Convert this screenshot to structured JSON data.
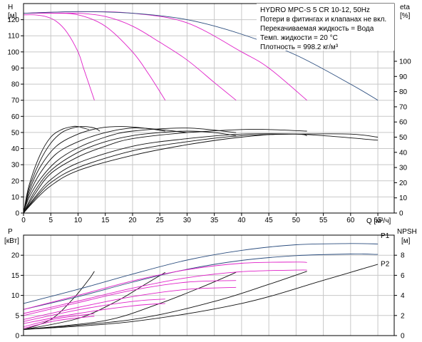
{
  "colors": {
    "pump_curve": "#2b4d7e",
    "system_curve": "#e020c8",
    "efficiency_curve": "#111111",
    "grid": "#c8c8c8"
  },
  "chart_data": [
    {
      "type": "line",
      "name": "upper",
      "title": "",
      "left_axis_label": [
        "H",
        "[м]"
      ],
      "right_axis_label": [
        "eta",
        "[%]"
      ],
      "x_label": "Q [м³/ч]",
      "xlim": [
        0,
        68
      ],
      "ylim": [
        0,
        130
      ],
      "x_ticks": [
        0,
        5,
        10,
        15,
        20,
        25,
        30,
        35,
        40,
        45,
        50,
        55,
        60,
        65
      ],
      "y_ticks": [
        0,
        10,
        20,
        30,
        40,
        50,
        60,
        70,
        80,
        90,
        100,
        110,
        120
      ],
      "eta_ticks": [
        0,
        10,
        20,
        30,
        40,
        50,
        60,
        70,
        80,
        90,
        100
      ],
      "eta_range_ylim": [
        0,
        100
      ],
      "eta_offset": 0,
      "eta_scale": 1,
      "info_box": [
        "HYDRO MPC-S 5 CR 10-12, 50Hz",
        "Потери в фитингах и клапанах не вкл.",
        "Перекачиваемая жидкость = Вода",
        "Темп. жидкости = 20 °С",
        "Плотность = 998.2 кг/м³"
      ],
      "head_curves": [
        {
          "x": [
            0,
            2,
            4,
            6,
            8,
            10,
            11,
            12,
            13
          ],
          "y": [
            123,
            123,
            122,
            119,
            112,
            100,
            90,
            80,
            70
          ]
        },
        {
          "x": [
            0,
            5,
            10,
            15,
            20,
            23,
            26
          ],
          "y": [
            124,
            124,
            123,
            116,
            100,
            86,
            70
          ]
        },
        {
          "x": [
            0,
            5,
            10,
            15,
            20,
            25,
            30,
            35,
            39
          ],
          "y": [
            124,
            124,
            124,
            122,
            116,
            106,
            95,
            81,
            70
          ]
        },
        {
          "x": [
            0,
            10,
            20,
            30,
            40,
            45,
            52
          ],
          "y": [
            124,
            125,
            124,
            118,
            100,
            90,
            70
          ]
        },
        {
          "x": [
            0,
            10,
            20,
            30,
            40,
            50,
            60,
            65
          ],
          "y": [
            124,
            125,
            124,
            120,
            111,
            98,
            80,
            70
          ]
        }
      ],
      "eta_curves": [
        {
          "x": [
            0,
            1,
            3,
            5,
            7,
            9,
            11,
            13,
            14
          ],
          "y": [
            0,
            16,
            34,
            46,
            53,
            56,
            57,
            56,
            54
          ]
        },
        {
          "x": [
            0,
            1,
            3,
            5,
            7,
            9,
            10,
            11,
            12
          ],
          "y": [
            0,
            18,
            38,
            50,
            55,
            57,
            57,
            56,
            55
          ]
        },
        {
          "x": [
            0,
            1,
            3,
            6,
            10,
            14,
            18,
            22,
            26
          ],
          "y": [
            0,
            14,
            30,
            44,
            52,
            56,
            57,
            56,
            54
          ]
        },
        {
          "x": [
            0,
            1,
            3,
            6,
            10,
            15,
            20,
            25,
            30
          ],
          "y": [
            0,
            12,
            26,
            39,
            47,
            53,
            56,
            55,
            53
          ]
        },
        {
          "x": [
            0,
            1,
            3,
            6,
            10,
            15,
            20,
            30,
            39
          ],
          "y": [
            0,
            10,
            22,
            34,
            43,
            50,
            54,
            56,
            53
          ]
        },
        {
          "x": [
            0,
            2,
            5,
            10,
            15,
            20,
            25,
            30,
            35,
            39
          ],
          "y": [
            0,
            14,
            28,
            40,
            47,
            51,
            53,
            54,
            53,
            51
          ]
        },
        {
          "x": [
            0,
            2,
            5,
            10,
            15,
            20,
            30,
            40,
            45,
            52
          ],
          "y": [
            0,
            12,
            26,
            37,
            44,
            49,
            53,
            55,
            55,
            54
          ]
        },
        {
          "x": [
            0,
            2,
            5,
            10,
            20,
            30,
            40,
            50,
            52
          ],
          "y": [
            0,
            10,
            22,
            33,
            44,
            49,
            52,
            52,
            51
          ]
        },
        {
          "x": [
            0,
            2,
            5,
            10,
            20,
            30,
            40,
            50,
            60,
            65
          ],
          "y": [
            0,
            9,
            20,
            30,
            41,
            47,
            51,
            52,
            52,
            50
          ]
        },
        {
          "x": [
            0,
            2,
            5,
            10,
            20,
            30,
            40,
            50,
            65
          ],
          "y": [
            0,
            8,
            18,
            28,
            38,
            45,
            50,
            52,
            48
          ]
        }
      ]
    },
    {
      "type": "line",
      "name": "lower",
      "left_axis_label": [
        "P",
        "[кВт]"
      ],
      "right_axis_label": [
        "NPSH",
        "[м]"
      ],
      "xlim": [
        0,
        68
      ],
      "ylim": [
        0,
        25
      ],
      "y_ticks": [
        0,
        5,
        10,
        15,
        20
      ],
      "npsh_ticks": [
        0,
        2,
        4,
        6,
        8
      ],
      "npsh_ylim": [
        0,
        10
      ],
      "labels": [
        "P1",
        "P2"
      ],
      "label_positions_data": [
        {
          "x": 65,
          "y": 24.3
        },
        {
          "x": 65,
          "y": 19.1
        }
      ],
      "p1_curves": [
        {
          "x": [
            0,
            10,
            20,
            30,
            40,
            50,
            60,
            65
          ],
          "y": [
            8,
            11.5,
            15.3,
            18.8,
            21.2,
            22.6,
            22.9,
            22.8
          ]
        },
        {
          "x": [
            0,
            10,
            20,
            30,
            40,
            50,
            52
          ],
          "y": [
            6.5,
            10,
            13.6,
            16.4,
            18,
            18.3,
            18.2
          ]
        },
        {
          "x": [
            0,
            10,
            20,
            30,
            39
          ],
          "y": [
            5,
            8.2,
            11.3,
            13.3,
            13.7
          ]
        },
        {
          "x": [
            0,
            10,
            20,
            26
          ],
          "y": [
            3.5,
            6.4,
            8.5,
            9.1
          ]
        },
        {
          "x": [
            0,
            6,
            12,
            13
          ],
          "y": [
            2.2,
            4.2,
            5.3,
            5.4
          ]
        }
      ],
      "p2_curves": [
        {
          "x": [
            0,
            10,
            20,
            30,
            40,
            50,
            60,
            65
          ],
          "y": [
            6.5,
            9.7,
            13.3,
            16.5,
            18.7,
            19.9,
            20.3,
            20.2
          ]
        },
        {
          "x": [
            0,
            10,
            20,
            30,
            40,
            50,
            52
          ],
          "y": [
            5.5,
            8.6,
            11.8,
            14.4,
            15.9,
            16.3,
            16.3
          ]
        },
        {
          "x": [
            0,
            10,
            20,
            30,
            39
          ],
          "y": [
            4,
            7,
            9.7,
            11.5,
            12
          ]
        },
        {
          "x": [
            0,
            10,
            20,
            26
          ],
          "y": [
            3,
            5.5,
            7.4,
            8
          ]
        },
        {
          "x": [
            0,
            6,
            12,
            13
          ],
          "y": [
            1.8,
            3.7,
            4.7,
            4.8
          ]
        }
      ],
      "npsh_curves": [
        {
          "x": [
            0,
            20,
            40,
            55,
            65
          ],
          "y": [
            0.6,
            1.4,
            3.2,
            5.5,
            7.1
          ]
        },
        {
          "x": [
            0,
            20,
            35,
            45,
            52
          ],
          "y": [
            0.6,
            1.6,
            3.4,
            5.1,
            6.4
          ]
        },
        {
          "x": [
            0,
            15,
            25,
            33,
            39
          ],
          "y": [
            0.6,
            1.5,
            3.2,
            4.9,
            6.3
          ]
        },
        {
          "x": [
            0,
            10,
            17,
            22,
            26
          ],
          "y": [
            0.6,
            1.7,
            3.4,
            5,
            6.3
          ]
        },
        {
          "x": [
            0,
            5,
            9,
            12,
            13
          ],
          "y": [
            0.6,
            1.6,
            3.6,
            5.6,
            6.4
          ]
        }
      ]
    }
  ]
}
